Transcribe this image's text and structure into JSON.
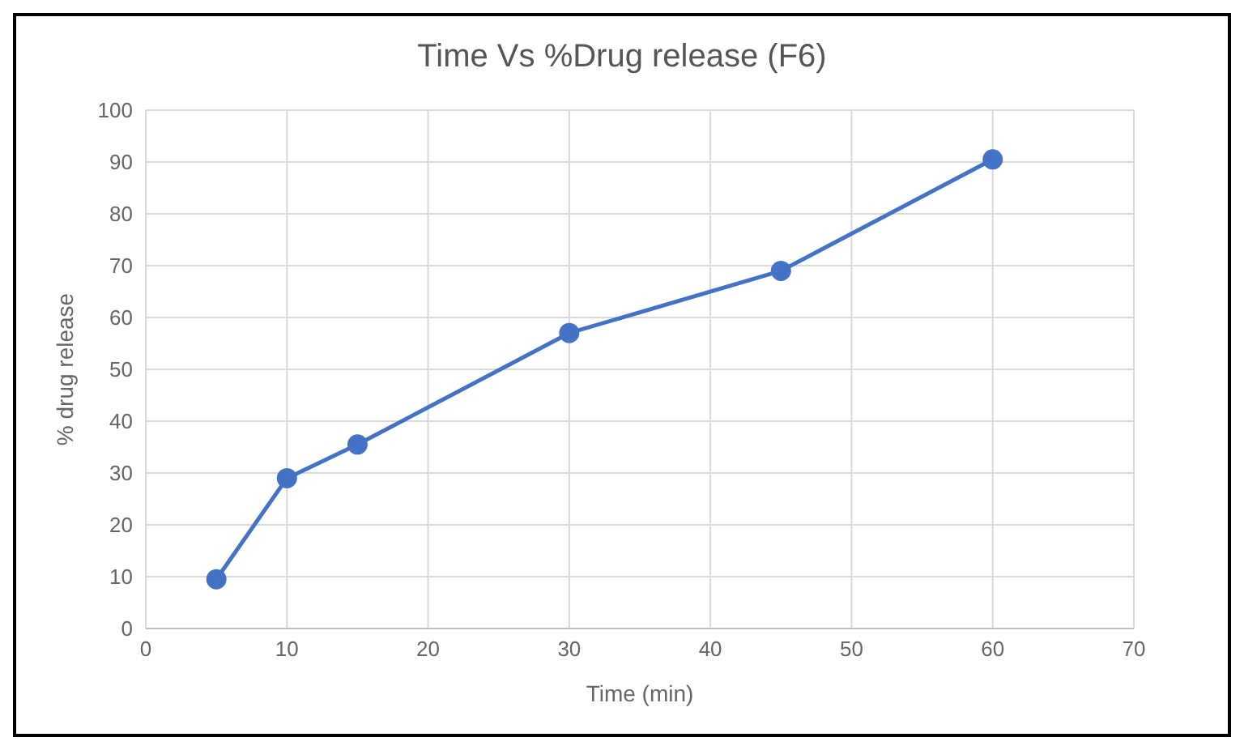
{
  "chart_data": {
    "type": "line",
    "title": "Time Vs %Drug release (F6)",
    "xlabel": "Time (min)",
    "ylabel": "% drug release",
    "x": [
      5,
      10,
      15,
      30,
      45,
      60
    ],
    "series": [
      {
        "color": "#4472c4",
        "values": [
          9.5,
          29,
          35.5,
          57,
          69,
          90.5
        ]
      }
    ],
    "xlim": [
      0,
      70
    ],
    "xticks": [
      0,
      10,
      20,
      30,
      40,
      50,
      60,
      70
    ],
    "ylim": [
      0,
      100
    ],
    "yticks": [
      0,
      10,
      20,
      30,
      40,
      50,
      60,
      70,
      80,
      90,
      100
    ],
    "grid": true,
    "marker": "circle",
    "line_style": "solid",
    "legend": false
  }
}
